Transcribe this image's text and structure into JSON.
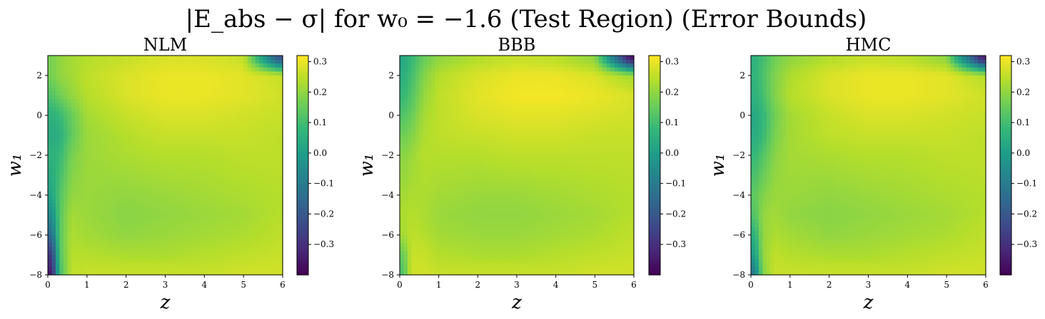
{
  "figure": {
    "title": "|E_abs − σ| for w₀ = −1.6 (Test Region) (Error Bounds)"
  },
  "colors": {
    "viridis": [
      "#440154",
      "#482878",
      "#3e4989",
      "#31688e",
      "#26828e",
      "#1f9e89",
      "#35b779",
      "#6ece58",
      "#b5de2b",
      "#fde725"
    ]
  },
  "chart_data": [
    {
      "type": "heatmap",
      "title": "NLM",
      "xlabel": "z",
      "ylabel": "w₁",
      "xlim": [
        0,
        6
      ],
      "ylim": [
        -8,
        3
      ],
      "xticks": [
        0,
        1,
        2,
        3,
        4,
        5,
        6
      ],
      "yticks": [
        -8,
        -6,
        -4,
        -2,
        0,
        2
      ],
      "colorbar": {
        "vmin": -0.4,
        "vmax": 0.32,
        "ticks": [
          -0.3,
          -0.2,
          -0.1,
          0.0,
          0.1,
          0.2,
          0.3
        ]
      },
      "grid_z": [
        0.1,
        0.3,
        0.6,
        1.0,
        2.0,
        3.0,
        4.0,
        5.0,
        5.9
      ],
      "grid_w1": [
        2.8,
        2.0,
        1.0,
        0.0,
        -1.0,
        -2.0,
        -4.0,
        -5.0,
        -6.0,
        -7.0,
        -7.9
      ],
      "values": [
        [
          0.17,
          0.2,
          0.22,
          0.24,
          0.26,
          0.28,
          0.28,
          0.26,
          -0.2
        ],
        [
          0.17,
          0.2,
          0.22,
          0.25,
          0.28,
          0.3,
          0.3,
          0.29,
          0.26
        ],
        [
          0.12,
          0.16,
          0.2,
          0.24,
          0.28,
          0.3,
          0.3,
          0.29,
          0.27
        ],
        [
          0.06,
          0.08,
          0.15,
          0.22,
          0.26,
          0.28,
          0.28,
          0.27,
          0.26
        ],
        [
          0.04,
          0.05,
          0.14,
          0.21,
          0.24,
          0.26,
          0.26,
          0.26,
          0.25
        ],
        [
          0.06,
          0.08,
          0.17,
          0.21,
          0.23,
          0.24,
          0.24,
          0.25,
          0.25
        ],
        [
          0.02,
          0.12,
          0.2,
          0.21,
          0.2,
          0.21,
          0.22,
          0.23,
          0.24
        ],
        [
          -0.05,
          0.13,
          0.22,
          0.21,
          0.19,
          0.2,
          0.21,
          0.22,
          0.24
        ],
        [
          -0.15,
          0.13,
          0.23,
          0.22,
          0.2,
          0.21,
          0.22,
          0.23,
          0.25
        ],
        [
          -0.28,
          0.12,
          0.24,
          0.24,
          0.23,
          0.23,
          0.24,
          0.25,
          0.26
        ],
        [
          -0.35,
          0.1,
          0.25,
          0.26,
          0.26,
          0.26,
          0.26,
          0.27,
          0.27
        ]
      ]
    },
    {
      "type": "heatmap",
      "title": "BBB",
      "xlabel": "z",
      "ylabel": "w₁",
      "xlim": [
        0,
        6
      ],
      "ylim": [
        -8,
        3
      ],
      "xticks": [
        0,
        1,
        2,
        3,
        4,
        5,
        6
      ],
      "yticks": [
        -8,
        -6,
        -4,
        -2,
        0,
        2
      ],
      "colorbar": {
        "vmin": -0.4,
        "vmax": 0.32,
        "ticks": [
          -0.3,
          -0.2,
          -0.1,
          0.0,
          0.1,
          0.2,
          0.3
        ]
      },
      "grid_z": [
        0.1,
        0.3,
        0.6,
        1.0,
        2.0,
        3.0,
        4.0,
        5.0,
        5.9
      ],
      "grid_w1": [
        2.8,
        2.0,
        1.0,
        0.0,
        -1.0,
        -2.0,
        -4.0,
        -5.0,
        -6.0,
        -7.0,
        -7.9
      ],
      "values": [
        [
          0.03,
          0.08,
          0.15,
          0.2,
          0.24,
          0.26,
          0.25,
          0.2,
          -0.35
        ],
        [
          0.05,
          0.1,
          0.18,
          0.24,
          0.28,
          0.3,
          0.3,
          0.28,
          0.22
        ],
        [
          0.08,
          0.12,
          0.2,
          0.25,
          0.29,
          0.31,
          0.31,
          0.3,
          0.28
        ],
        [
          0.12,
          0.15,
          0.22,
          0.25,
          0.28,
          0.29,
          0.29,
          0.28,
          0.27
        ],
        [
          0.16,
          0.18,
          0.23,
          0.25,
          0.26,
          0.27,
          0.27,
          0.26,
          0.26
        ],
        [
          0.19,
          0.21,
          0.24,
          0.24,
          0.24,
          0.25,
          0.25,
          0.25,
          0.25
        ],
        [
          0.22,
          0.23,
          0.23,
          0.22,
          0.21,
          0.21,
          0.22,
          0.23,
          0.24
        ],
        [
          0.23,
          0.24,
          0.23,
          0.21,
          0.2,
          0.2,
          0.21,
          0.22,
          0.24
        ],
        [
          0.22,
          0.25,
          0.24,
          0.22,
          0.21,
          0.21,
          0.22,
          0.23,
          0.25
        ],
        [
          0.15,
          0.26,
          0.26,
          0.24,
          0.23,
          0.23,
          0.24,
          0.25,
          0.26
        ],
        [
          0.12,
          0.27,
          0.27,
          0.26,
          0.26,
          0.26,
          0.26,
          0.27,
          0.27
        ]
      ]
    },
    {
      "type": "heatmap",
      "title": "HMC",
      "xlabel": "z",
      "ylabel": "w₁",
      "xlim": [
        0,
        6
      ],
      "ylim": [
        -8,
        3
      ],
      "xticks": [
        0,
        1,
        2,
        3,
        4,
        5,
        6
      ],
      "yticks": [
        -8,
        -6,
        -4,
        -2,
        0,
        2
      ],
      "colorbar": {
        "vmin": -0.4,
        "vmax": 0.32,
        "ticks": [
          -0.3,
          -0.2,
          -0.1,
          0.0,
          0.1,
          0.2,
          0.3
        ]
      },
      "grid_z": [
        0.1,
        0.3,
        0.6,
        1.0,
        2.0,
        3.0,
        4.0,
        5.0,
        5.9
      ],
      "grid_w1": [
        2.8,
        2.0,
        1.0,
        0.0,
        -1.0,
        -2.0,
        -4.0,
        -5.0,
        -6.0,
        -7.0,
        -7.9
      ],
      "values": [
        [
          0.06,
          0.1,
          0.16,
          0.2,
          0.24,
          0.26,
          0.25,
          0.2,
          -0.32
        ],
        [
          0.07,
          0.11,
          0.18,
          0.23,
          0.28,
          0.3,
          0.3,
          0.29,
          0.24
        ],
        [
          0.06,
          0.1,
          0.18,
          0.24,
          0.28,
          0.3,
          0.3,
          0.29,
          0.27
        ],
        [
          0.03,
          0.07,
          0.16,
          0.22,
          0.26,
          0.28,
          0.28,
          0.27,
          0.26
        ],
        [
          0.04,
          0.08,
          0.17,
          0.22,
          0.25,
          0.26,
          0.26,
          0.26,
          0.25
        ],
        [
          0.08,
          0.12,
          0.19,
          0.22,
          0.23,
          0.24,
          0.24,
          0.25,
          0.25
        ],
        [
          0.14,
          0.18,
          0.21,
          0.21,
          0.2,
          0.21,
          0.22,
          0.23,
          0.24
        ],
        [
          0.12,
          0.2,
          0.22,
          0.2,
          0.19,
          0.2,
          0.21,
          0.22,
          0.24
        ],
        [
          0.06,
          0.2,
          0.23,
          0.22,
          0.2,
          0.21,
          0.22,
          0.23,
          0.25
        ],
        [
          0.0,
          0.2,
          0.25,
          0.24,
          0.23,
          0.23,
          0.24,
          0.25,
          0.26
        ],
        [
          -0.1,
          0.18,
          0.26,
          0.26,
          0.26,
          0.26,
          0.26,
          0.27,
          0.27
        ]
      ]
    }
  ]
}
